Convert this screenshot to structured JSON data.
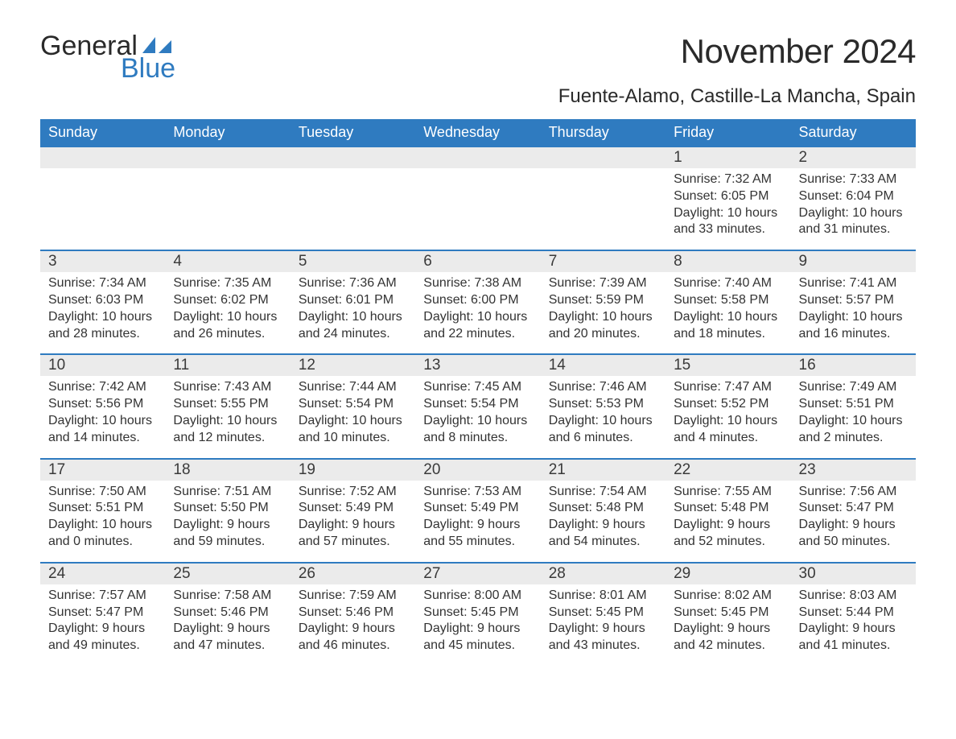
{
  "logo": {
    "line1": "General",
    "line2": "Blue",
    "accent_color": "#2f7bc0"
  },
  "title": "November 2024",
  "location": "Fuente-Alamo, Castille-La Mancha, Spain",
  "header_bg": "#2f7bc0",
  "header_text_color": "#ffffff",
  "daynum_bg": "#ebebeb",
  "week_border_color": "#2f7bc0",
  "body_text_color": "#333333",
  "weekdays": [
    "Sunday",
    "Monday",
    "Tuesday",
    "Wednesday",
    "Thursday",
    "Friday",
    "Saturday"
  ],
  "weeks": [
    {
      "days": [
        {
          "num": "",
          "sunrise": "",
          "sunset": "",
          "daylight": ""
        },
        {
          "num": "",
          "sunrise": "",
          "sunset": "",
          "daylight": ""
        },
        {
          "num": "",
          "sunrise": "",
          "sunset": "",
          "daylight": ""
        },
        {
          "num": "",
          "sunrise": "",
          "sunset": "",
          "daylight": ""
        },
        {
          "num": "",
          "sunrise": "",
          "sunset": "",
          "daylight": ""
        },
        {
          "num": "1",
          "sunrise": "Sunrise: 7:32 AM",
          "sunset": "Sunset: 6:05 PM",
          "daylight": "Daylight: 10 hours and 33 minutes."
        },
        {
          "num": "2",
          "sunrise": "Sunrise: 7:33 AM",
          "sunset": "Sunset: 6:04 PM",
          "daylight": "Daylight: 10 hours and 31 minutes."
        }
      ]
    },
    {
      "days": [
        {
          "num": "3",
          "sunrise": "Sunrise: 7:34 AM",
          "sunset": "Sunset: 6:03 PM",
          "daylight": "Daylight: 10 hours and 28 minutes."
        },
        {
          "num": "4",
          "sunrise": "Sunrise: 7:35 AM",
          "sunset": "Sunset: 6:02 PM",
          "daylight": "Daylight: 10 hours and 26 minutes."
        },
        {
          "num": "5",
          "sunrise": "Sunrise: 7:36 AM",
          "sunset": "Sunset: 6:01 PM",
          "daylight": "Daylight: 10 hours and 24 minutes."
        },
        {
          "num": "6",
          "sunrise": "Sunrise: 7:38 AM",
          "sunset": "Sunset: 6:00 PM",
          "daylight": "Daylight: 10 hours and 22 minutes."
        },
        {
          "num": "7",
          "sunrise": "Sunrise: 7:39 AM",
          "sunset": "Sunset: 5:59 PM",
          "daylight": "Daylight: 10 hours and 20 minutes."
        },
        {
          "num": "8",
          "sunrise": "Sunrise: 7:40 AM",
          "sunset": "Sunset: 5:58 PM",
          "daylight": "Daylight: 10 hours and 18 minutes."
        },
        {
          "num": "9",
          "sunrise": "Sunrise: 7:41 AM",
          "sunset": "Sunset: 5:57 PM",
          "daylight": "Daylight: 10 hours and 16 minutes."
        }
      ]
    },
    {
      "days": [
        {
          "num": "10",
          "sunrise": "Sunrise: 7:42 AM",
          "sunset": "Sunset: 5:56 PM",
          "daylight": "Daylight: 10 hours and 14 minutes."
        },
        {
          "num": "11",
          "sunrise": "Sunrise: 7:43 AM",
          "sunset": "Sunset: 5:55 PM",
          "daylight": "Daylight: 10 hours and 12 minutes."
        },
        {
          "num": "12",
          "sunrise": "Sunrise: 7:44 AM",
          "sunset": "Sunset: 5:54 PM",
          "daylight": "Daylight: 10 hours and 10 minutes."
        },
        {
          "num": "13",
          "sunrise": "Sunrise: 7:45 AM",
          "sunset": "Sunset: 5:54 PM",
          "daylight": "Daylight: 10 hours and 8 minutes."
        },
        {
          "num": "14",
          "sunrise": "Sunrise: 7:46 AM",
          "sunset": "Sunset: 5:53 PM",
          "daylight": "Daylight: 10 hours and 6 minutes."
        },
        {
          "num": "15",
          "sunrise": "Sunrise: 7:47 AM",
          "sunset": "Sunset: 5:52 PM",
          "daylight": "Daylight: 10 hours and 4 minutes."
        },
        {
          "num": "16",
          "sunrise": "Sunrise: 7:49 AM",
          "sunset": "Sunset: 5:51 PM",
          "daylight": "Daylight: 10 hours and 2 minutes."
        }
      ]
    },
    {
      "days": [
        {
          "num": "17",
          "sunrise": "Sunrise: 7:50 AM",
          "sunset": "Sunset: 5:51 PM",
          "daylight": "Daylight: 10 hours and 0 minutes."
        },
        {
          "num": "18",
          "sunrise": "Sunrise: 7:51 AM",
          "sunset": "Sunset: 5:50 PM",
          "daylight": "Daylight: 9 hours and 59 minutes."
        },
        {
          "num": "19",
          "sunrise": "Sunrise: 7:52 AM",
          "sunset": "Sunset: 5:49 PM",
          "daylight": "Daylight: 9 hours and 57 minutes."
        },
        {
          "num": "20",
          "sunrise": "Sunrise: 7:53 AM",
          "sunset": "Sunset: 5:49 PM",
          "daylight": "Daylight: 9 hours and 55 minutes."
        },
        {
          "num": "21",
          "sunrise": "Sunrise: 7:54 AM",
          "sunset": "Sunset: 5:48 PM",
          "daylight": "Daylight: 9 hours and 54 minutes."
        },
        {
          "num": "22",
          "sunrise": "Sunrise: 7:55 AM",
          "sunset": "Sunset: 5:48 PM",
          "daylight": "Daylight: 9 hours and 52 minutes."
        },
        {
          "num": "23",
          "sunrise": "Sunrise: 7:56 AM",
          "sunset": "Sunset: 5:47 PM",
          "daylight": "Daylight: 9 hours and 50 minutes."
        }
      ]
    },
    {
      "days": [
        {
          "num": "24",
          "sunrise": "Sunrise: 7:57 AM",
          "sunset": "Sunset: 5:47 PM",
          "daylight": "Daylight: 9 hours and 49 minutes."
        },
        {
          "num": "25",
          "sunrise": "Sunrise: 7:58 AM",
          "sunset": "Sunset: 5:46 PM",
          "daylight": "Daylight: 9 hours and 47 minutes."
        },
        {
          "num": "26",
          "sunrise": "Sunrise: 7:59 AM",
          "sunset": "Sunset: 5:46 PM",
          "daylight": "Daylight: 9 hours and 46 minutes."
        },
        {
          "num": "27",
          "sunrise": "Sunrise: 8:00 AM",
          "sunset": "Sunset: 5:45 PM",
          "daylight": "Daylight: 9 hours and 45 minutes."
        },
        {
          "num": "28",
          "sunrise": "Sunrise: 8:01 AM",
          "sunset": "Sunset: 5:45 PM",
          "daylight": "Daylight: 9 hours and 43 minutes."
        },
        {
          "num": "29",
          "sunrise": "Sunrise: 8:02 AM",
          "sunset": "Sunset: 5:45 PM",
          "daylight": "Daylight: 9 hours and 42 minutes."
        },
        {
          "num": "30",
          "sunrise": "Sunrise: 8:03 AM",
          "sunset": "Sunset: 5:44 PM",
          "daylight": "Daylight: 9 hours and 41 minutes."
        }
      ]
    }
  ]
}
